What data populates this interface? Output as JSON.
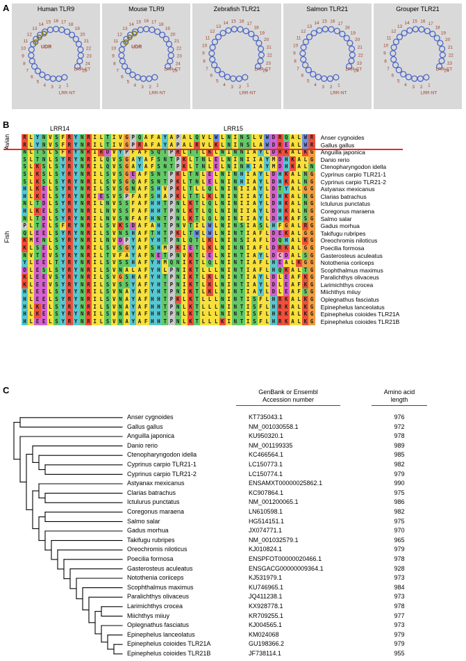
{
  "panel_a": {
    "label": "A",
    "structures": [
      {
        "title": "Human TLR9",
        "lrr_count": 25,
        "has_udr": true,
        "udr_label": "UDR",
        "ct_label": "LRR-CT",
        "nt_label": "LRR-NT"
      },
      {
        "title": "Mouse TLR9",
        "lrr_count": 25,
        "has_udr": true,
        "udr_label": "UDR",
        "ct_label": "LRR-CT",
        "nt_label": "LRR-NT"
      },
      {
        "title": "Zebrafish TLR21",
        "lrr_count": 24,
        "has_udr": false,
        "udr_label": "",
        "ct_label": "LRR-CT",
        "nt_label": "LRR-NT"
      },
      {
        "title": "Salmon TLR21",
        "lrr_count": 24,
        "has_udr": false,
        "udr_label": "",
        "ct_label": "LRR-CT",
        "nt_label": "LRR-NT"
      },
      {
        "title": "Grouper TLR21",
        "lrr_count": 24,
        "has_udr": false,
        "udr_label": "",
        "ct_label": "LRR-CT",
        "nt_label": "LRR-NT"
      }
    ],
    "colors": {
      "bg": "#d9d9d9",
      "loop": "#4a66c8",
      "number": "#a0402a",
      "annotation": "#a0402a",
      "udr_stroke": "#8a7a15"
    }
  },
  "panel_b": {
    "label": "B",
    "lrr_labels": [
      "LRR14",
      "LRR15"
    ],
    "group_labels": [
      "Avian",
      "Fish"
    ],
    "separator_color": "#e8262a",
    "residue_colors": {
      "A": "#f7e03c",
      "V": "#f7e03c",
      "L": "#f7e03c",
      "I": "#f7e03c",
      "M": "#f7e03c",
      "F": "#f7e03c",
      "W": "#6b8fe8",
      "K": "#ee4f3c",
      "R": "#ee4f3c",
      "D": "#d560cf",
      "E": "#d560cf",
      "N": "#63c966",
      "Q": "#63c966",
      "S": "#63c966",
      "T": "#63c966",
      "H": "#57c7d0",
      "Y": "#57c7d0",
      "G": "#f29c3e",
      "P": "#c9c9c9",
      "C": "#f2a5c5"
    },
    "rows": [
      {
        "species": "Anser cygnoides",
        "seq": "RLYNVSFRYNRILTIVGPQAFAYAPALQVLWLNINSLVWDRQALWR"
      },
      {
        "species": "Gallus gallus",
        "seq": "RLYNVSFRYNRILTIVGPRAFAYAPALRVLKLNINSLAWDREALWR"
      },
      {
        "species": "Anguilla japonica",
        "seq": "NLTSLSFRYNRIRDVYPFAFSQTPRLTTLKLNINNIAYLDRKALKG"
      },
      {
        "species": "Danio rerio",
        "seq": "SLTNLSYRYNRILQVSGAYAFSNTPKLTNLELNINIIAYMDHKALG"
      },
      {
        "species": "Ctenopharyngodon idella",
        "seq": "SLKSLSYRYNRILQVSGAYAFSNTPKLTNLELNINHIAYMDHKALN"
      },
      {
        "species": "Cyprinus carpio TLR21-1",
        "seq": "SLKSLSYRYNRILSVSGEAFSNTPKLTNLELNINHIAYLDHKALNG"
      },
      {
        "species": "Cyprinus carpio TLR21-2",
        "seq": "SLKSLSYRYNRILSVSGQAFSNTPKLTNLELNINHIAYLDHKALNG"
      },
      {
        "species": "Astyanax mexicanus",
        "seq": "HLKELSYRYNRILSVSGNAFSHVPKLTLLQLNINIIAYLDTYALGG"
      },
      {
        "species": "Clarias batrachus",
        "seq": "HLKELSYRYNRIESVSPFAFSHAPKLTTLKLNINIIAYLDHKALNG"
      },
      {
        "species": "Ictulurus punctatus",
        "seq": "NLTDLSYRYNRILNVSSFAFHHTPNLKTLQLNINIIAYLDHKALNG"
      },
      {
        "species": "Coregonus maraena",
        "seq": "HLKELSYRYNRILNVSSFAFHHTPNLKTLQLNINIIAYLDHKALNG"
      },
      {
        "species": "Salmo salar",
        "seq": "NLTDLSYRYNRILNVSNFAFHNTPNLKTLQLNINIIAYLDHKAFSG"
      },
      {
        "species": "Gadus morhua",
        "seq": "PLTELSFRYNRILSVKSDAFAHTPNVTILWLNINSIASLHFGALRG"
      },
      {
        "species": "Takifugu rubripes",
        "seq": "QLEELSYRYNRILSVNSHAFTHTPKLTWLWLNINTIAFLDEKALGG"
      },
      {
        "species": "Oreochromis niloticus",
        "seq": "KMENLSYRYNRILNVDPYAFYHTPNLQTLKLNINSIAFLDQHALKG"
      },
      {
        "species": "Poecilia formosa",
        "seq": "KLSELSYRYNRILSVSGYAFSHMPKIETLKLNINNIAFLDRKALGG"
      },
      {
        "species": "Gasterosteus aculeatus",
        "seq": "NVTEVSYRYNRILTVFAYAFNETPNVKTLELNINTIAYLDCDALSG"
      },
      {
        "species": "Notothenia coriiceps",
        "seq": "YLEELTYRYNRILSVSSHAFYHMQNIKTLQLNINTIAFLHEALKGG"
      },
      {
        "species": "Scophthalmus maximus",
        "seq": "DLESLSYRYNRILSVNALAFYHLPNIKTLLLNINTIAFLHQKALTG"
      },
      {
        "species": "Paralichthys olivaceus",
        "seq": "KLEEVSYRYNRILSVGSHAFYHTPNIKTLKLNINTIAYLDLEAFKG"
      },
      {
        "species": "Larimichthys crocea",
        "seq": "KLEEVSYRYNRILSVSSYAFYHTPNIKTLKLNINTIAYLDLEAFKG"
      },
      {
        "species": "Miichthys miiuy",
        "seq": "HLEELSYRYNRILSVNAYAFYHTPNIKTLKLNINTIAYLDLEAFSG"
      },
      {
        "species": "Oplegnathus fasciatus",
        "seq": "HLEELSYRYNRILSVNAYAFHHTPKLKTLLLNINTISFLHRKALKG"
      },
      {
        "species": "Epinephelus lanceolatus",
        "seq": "HLKELSYRYNRILSVNAYAFHHTPNLKTLLLNINTISFLHRKALKG"
      },
      {
        "species": "Epinephelus coioides TLR21A",
        "seq": "HLKELSYRYNRILSVNAYAFHHTPNLKTLLLNINTISFLHRKALKG"
      },
      {
        "species": "Epinephelus coioides TLR21B",
        "seq": "HLEELSYRYNRILSVNAYAFHHTPNLKTLLLKINTISFLHRKALKG"
      }
    ]
  },
  "panel_c": {
    "label": "C",
    "header_accession_1": "GenBank or Ensembl",
    "header_accession_2": "Accession number",
    "header_length_1": "Amino acid",
    "header_length_2": "length",
    "tree_color": "#000000",
    "tree": [
      [
        0,
        1
      ],
      [
        2,
        [
          [
            3,
            [
              4,
              [
                5,
                6
              ]
            ]
          ],
          [
            [
              7,
              [
                8,
                9
              ]
            ],
            [
              [
                10,
                11
              ],
              [
                12,
                [
                  13,
                  [
                    14,
                    [
                      15,
                      [
                        16,
                        [
                          17,
                          [
                            18,
                            [
                              19,
                              [
                                [
                                  20,
                                  21
                                ],
                                [
                                  22,
                                  [
                                    23,
                                    [
                                      24,
                                      25
                                    ]
                                  ]
                                ]
                              ]
                            ]
                          ]
                        ]
                      ]
                    ]
                  ]
                ]
              ]
            ]
          ]
        ]
      ]
    ],
    "rows": [
      {
        "species": "Anser cygnoides",
        "accession": "KT735043.1",
        "length": "976"
      },
      {
        "species": "Gallus gallus",
        "accession": "NM_001030558.1",
        "length": "972"
      },
      {
        "species": "Anguilla japonica",
        "accession": "KU950320.1",
        "length": "978"
      },
      {
        "species": "Danio rerio",
        "accession": "NM_001199335",
        "length": "989"
      },
      {
        "species": "Ctenopharyngodon idella",
        "accession": "KC466564.1",
        "length": "985"
      },
      {
        "species": "Cyprinus carpio TLR21-1",
        "accession": "LC150773.1",
        "length": "982"
      },
      {
        "species": "Cyprinus carpio TLR21-2",
        "accession": "LC150774.1",
        "length": "979"
      },
      {
        "species": "Astyanax mexicanus",
        "accession": "ENSAMXT00000025862.1",
        "length": "990"
      },
      {
        "species": "Clarias batrachus",
        "accession": "KC907864.1",
        "length": "975"
      },
      {
        "species": "Ictulurus punctatus",
        "accession": "NM_001200065.1",
        "length": "986"
      },
      {
        "species": "Coregonus maraena",
        "accession": "LN610598.1",
        "length": "982"
      },
      {
        "species": "Salmo salar",
        "accession": "HG514151.1",
        "length": "975"
      },
      {
        "species": "Gadus morhua",
        "accession": "JX074771.1",
        "length": "970"
      },
      {
        "species": "Takifugu rubripes",
        "accession": "NM_001032579.1",
        "length": "965"
      },
      {
        "species": "Oreochromis niloticus",
        "accession": "KJ010824.1",
        "length": "979"
      },
      {
        "species": "Poecilia formosa",
        "accession": "ENSPFOT00000020466.1",
        "length": "978"
      },
      {
        "species": "Gasterosteus aculeatus",
        "accession": "ENSGACG00000009364.1",
        "length": "928"
      },
      {
        "species": "Notothenia coriiceps",
        "accession": "KJ531979.1",
        "length": "973"
      },
      {
        "species": "Scophthalmus maximus",
        "accession": "KU746965.1",
        "length": "984"
      },
      {
        "species": "Paralichthys olivaceus",
        "accession": "JQ411238.1",
        "length": "973"
      },
      {
        "species": "Larimichthys crocea",
        "accession": "KX928778.1",
        "length": "978"
      },
      {
        "species": "Miichthys miiuy",
        "accession": "KR709255.1",
        "length": "977"
      },
      {
        "species": "Oplegnathus fasciatus",
        "accession": "KJ004565.1",
        "length": "973"
      },
      {
        "species": "Epinephelus lanceolatus",
        "accession": "KM024068",
        "length": "979"
      },
      {
        "species": "Epinephelus coioides TLR21A",
        "accession": "GU198366.2",
        "length": "979"
      },
      {
        "species": "Epinephelus coioides TLR21B",
        "accession": "JF738114.1",
        "length": "955"
      }
    ]
  }
}
